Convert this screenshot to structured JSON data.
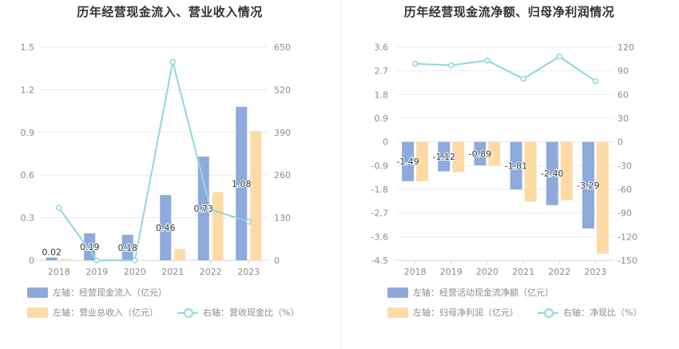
{
  "colors": {
    "bar1": "#8eaadc",
    "bar2": "#fedba5",
    "line": "#8fd7de",
    "grid": "#e8ebf2"
  },
  "chart_data": [
    {
      "type": "bar",
      "title": "历年经营现金流入、营业收入情况",
      "categories": [
        "2018",
        "2019",
        "2020",
        "2021",
        "2022",
        "2023"
      ],
      "left_axis": {
        "min": 0,
        "max": 1.5,
        "ticks": [
          "0",
          "0.3",
          "0.6",
          "0.9",
          "1.2",
          "1.5"
        ]
      },
      "right_axis": {
        "min": 0,
        "max": 650,
        "ticks": [
          "0",
          "130",
          "260",
          "390",
          "520",
          "650"
        ]
      },
      "series": [
        {
          "name": "左轴：经营现金流入（亿元）",
          "axis": "left",
          "type": "bar",
          "values": [
            0.02,
            0.19,
            0.18,
            0.46,
            0.73,
            1.08
          ],
          "labels": [
            "0.02",
            "0.19",
            "0.18",
            "0.46",
            "0.73",
            "1.08"
          ]
        },
        {
          "name": "左轴：营业总收入（亿元）",
          "axis": "left",
          "type": "bar",
          "values": [
            0.01,
            0.0,
            0.0,
            0.08,
            0.48,
            0.91
          ]
        },
        {
          "name": "右轴：营收现金比（%）",
          "axis": "right",
          "type": "line",
          "values": [
            160,
            0,
            0,
            605,
            155,
            118
          ]
        }
      ]
    },
    {
      "type": "bar",
      "title": "历年经营现金流净额、归母净利润情况",
      "categories": [
        "2018",
        "2019",
        "2020",
        "2021",
        "2022",
        "2023"
      ],
      "left_axis": {
        "min": -4.5,
        "max": 3.6,
        "ticks": [
          "-4.5",
          "-3.6",
          "-2.7",
          "-1.8",
          "-0.9",
          "0",
          "0.9",
          "1.8",
          "2.7",
          "3.6"
        ]
      },
      "right_axis": {
        "min": -150,
        "max": 120,
        "ticks": [
          "-150",
          "-120",
          "-90",
          "-60",
          "-30",
          "0",
          "30",
          "60",
          "90",
          "120"
        ]
      },
      "series": [
        {
          "name": "左轴：经营活动现金流净额（亿元）",
          "axis": "left",
          "type": "bar",
          "values": [
            -1.49,
            -1.12,
            -0.89,
            -1.81,
            -2.4,
            -3.29
          ],
          "labels": [
            "-1.49",
            "-1.12",
            "-0.89",
            "-1.81",
            "-2.40",
            "-3.29"
          ]
        },
        {
          "name": "左轴：归母净利润（亿元）",
          "axis": "left",
          "type": "bar",
          "values": [
            -1.5,
            -1.15,
            -0.9,
            -2.27,
            -2.22,
            -4.25
          ]
        },
        {
          "name": "右轴：净现比（%）",
          "axis": "right",
          "type": "line",
          "values": [
            99,
            97,
            103,
            80,
            108,
            77
          ]
        }
      ]
    }
  ]
}
